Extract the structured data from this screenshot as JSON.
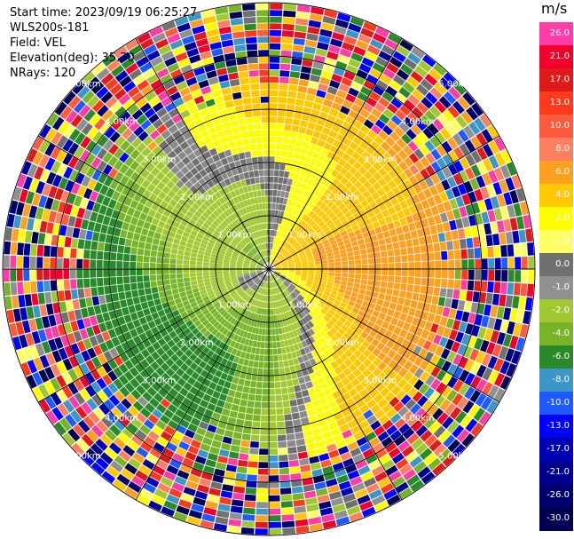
{
  "header": {
    "start_time": "Start time: 2023/09/19 06:25:27",
    "instrument": "WLS200s-181",
    "field": "Field: VEL",
    "elevation": "Elevation(deg): 35.30",
    "nrays": "NRays: 120"
  },
  "colorbar": {
    "unit": "m/s",
    "labels": [
      "26.0",
      "21.0",
      "17.0",
      "13.0",
      "10.0",
      "8.0",
      "6.0",
      "4.0",
      "2.0",
      "1.0",
      "0.0",
      "-1.0",
      "-2.0",
      "-4.0",
      "-6.0",
      "-8.0",
      "-10.0",
      "-13.0",
      "-17.0",
      "-21.0",
      "-26.0",
      "-30.0"
    ],
    "colors": [
      "#ff3ca8",
      "#f0002a",
      "#e01a1a",
      "#ff3a1a",
      "#ff5a3c",
      "#ff8060",
      "#ffa020",
      "#ffc800",
      "#ffff00",
      "#ffff66",
      "#707070",
      "#909090",
      "#a0c830",
      "#78b428",
      "#2a8a2a",
      "#3c96c8",
      "#1e5aff",
      "#0000ff",
      "#0000b4",
      "#000090",
      "#00006e",
      "#000050"
    ]
  },
  "chart_data": {
    "type": "heatmap",
    "subtype": "PPI polar scan",
    "field": "VEL",
    "units": "m/s",
    "elevation_deg": 35.3,
    "nrays": 120,
    "range_rings_km": [
      "1.00km",
      "2.00km",
      "3.00km",
      "4.00km",
      "5.00km"
    ],
    "range_ring_label_positions": [
      "north-west",
      "north-east",
      "south-west",
      "south-east"
    ],
    "color_scale": [
      -30.0,
      26.0
    ],
    "description_of_pattern": {
      "positive_velocities_sector": "north-east to east (yellow/orange)",
      "negative_velocities_sector": "west to south-west (green)",
      "near_zero_band": "grey curving band through centre",
      "noise_region": "outer ring beyond ~4.5 km"
    }
  }
}
